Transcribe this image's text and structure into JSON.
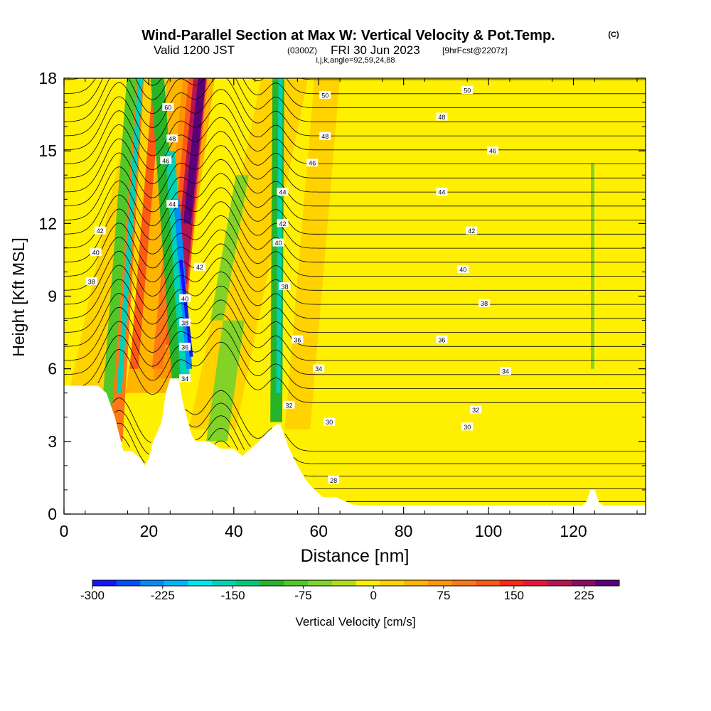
{
  "header": {
    "title": "Wind-Parallel Section at Max W: Vertical Velocity & Pot.Temp.",
    "title_mark": "(C)",
    "valid_prefix": "Valid 1200 JST",
    "valid_zulu": "(0300Z)",
    "valid_date": "FRI 30 Jun 2023",
    "forecast_tag": "[9hrFcst@2207z]",
    "section_params": "i,j,k,angle=92,59,24,88"
  },
  "chart_data": {
    "type": "heatmap",
    "xlabel": "Distance [nm]",
    "ylabel": "Height [Kft MSL]",
    "xlim": [
      0,
      137
    ],
    "ylim": [
      0,
      18
    ],
    "x_ticks": [
      0,
      20,
      40,
      60,
      80,
      100,
      120
    ],
    "y_ticks": [
      0,
      3,
      6,
      9,
      12,
      15,
      18
    ],
    "grid": false,
    "colorbar": {
      "label": "Vertical Velocity [cm/s]",
      "tick_labels": [
        "-300",
        "-225",
        "-150",
        "-75",
        "0",
        "75",
        "150",
        "225"
      ],
      "tick_values": [
        -300,
        -225,
        -150,
        -75,
        0,
        75,
        150,
        225
      ],
      "range": [
        -300,
        262.5
      ],
      "colors": [
        "#1414ff",
        "#0050ff",
        "#008cff",
        "#00b4ff",
        "#00e6f0",
        "#00d2b4",
        "#00c878",
        "#28b428",
        "#50c828",
        "#82d228",
        "#b4dc14",
        "#fff000",
        "#ffd200",
        "#ffb400",
        "#ff9600",
        "#ff7814",
        "#ff5a14",
        "#ff2814",
        "#e6143c",
        "#b41450",
        "#8c0a64",
        "#5a0078"
      ]
    },
    "terrain_kft": [
      [
        0,
        5.3
      ],
      [
        2,
        5.3
      ],
      [
        8,
        5.3
      ],
      [
        10,
        5.0
      ],
      [
        12,
        4.0
      ],
      [
        14,
        2.6
      ],
      [
        16,
        2.6
      ],
      [
        18,
        2.3
      ],
      [
        19,
        2.0
      ],
      [
        20,
        2.3
      ],
      [
        21,
        3.0
      ],
      [
        23,
        3.8
      ],
      [
        24,
        5.0
      ],
      [
        25,
        5.6
      ],
      [
        27,
        5.6
      ],
      [
        28,
        4.6
      ],
      [
        30,
        3.3
      ],
      [
        31,
        3.0
      ],
      [
        34,
        3.0
      ],
      [
        37,
        2.7
      ],
      [
        40,
        2.7
      ],
      [
        42,
        2.4
      ],
      [
        44,
        2.7
      ],
      [
        46,
        3.0
      ],
      [
        48,
        3.4
      ],
      [
        50,
        3.7
      ],
      [
        51,
        3.7
      ],
      [
        53,
        2.7
      ],
      [
        55,
        2.0
      ],
      [
        57,
        1.4
      ],
      [
        59,
        1.0
      ],
      [
        61,
        0.7
      ],
      [
        64,
        0.7
      ],
      [
        68,
        0.4
      ],
      [
        70,
        0.35
      ],
      [
        122,
        0.35
      ],
      [
        123,
        0.5
      ],
      [
        124,
        1.0
      ],
      [
        125,
        1.0
      ],
      [
        126,
        0.5
      ],
      [
        127,
        0.35
      ],
      [
        137,
        0.35
      ]
    ],
    "theta_contours": [
      {
        "label": "28",
        "x": 63.5,
        "y": 1.4
      },
      {
        "label": "30",
        "x": 62.5,
        "y": 3.8
      },
      {
        "label": "30",
        "x": 95,
        "y": 3.6
      },
      {
        "label": "32",
        "x": 53,
        "y": 4.5
      },
      {
        "label": "32",
        "x": 97,
        "y": 4.3
      },
      {
        "label": "34",
        "x": 28.5,
        "y": 5.6
      },
      {
        "label": "34",
        "x": 60,
        "y": 6.0
      },
      {
        "label": "34",
        "x": 104,
        "y": 5.9
      },
      {
        "label": "36",
        "x": 28.5,
        "y": 6.9
      },
      {
        "label": "36",
        "x": 55,
        "y": 7.2
      },
      {
        "label": "36",
        "x": 89,
        "y": 7.2
      },
      {
        "label": "38",
        "x": 6.5,
        "y": 9.6
      },
      {
        "label": "38",
        "x": 28.5,
        "y": 7.9
      },
      {
        "label": "38",
        "x": 52,
        "y": 9.4
      },
      {
        "label": "38",
        "x": 99,
        "y": 8.7
      },
      {
        "label": "40",
        "x": 7.5,
        "y": 10.8
      },
      {
        "label": "40",
        "x": 28.5,
        "y": 8.9
      },
      {
        "label": "40",
        "x": 50.5,
        "y": 11.2
      },
      {
        "label": "40",
        "x": 94,
        "y": 10.1
      },
      {
        "label": "42",
        "x": 8.5,
        "y": 11.7
      },
      {
        "label": "42",
        "x": 32,
        "y": 10.2
      },
      {
        "label": "42",
        "x": 51.5,
        "y": 12.0
      },
      {
        "label": "42",
        "x": 96,
        "y": 11.7
      },
      {
        "label": "44",
        "x": 25.5,
        "y": 12.8
      },
      {
        "label": "44",
        "x": 51.5,
        "y": 13.3
      },
      {
        "label": "44",
        "x": 89,
        "y": 13.3
      },
      {
        "label": "46",
        "x": 24,
        "y": 14.6
      },
      {
        "label": "46",
        "x": 58.5,
        "y": 14.5
      },
      {
        "label": "46",
        "x": 101,
        "y": 15.0
      },
      {
        "label": "48",
        "x": 25.5,
        "y": 15.5
      },
      {
        "label": "48",
        "x": 61.5,
        "y": 15.6
      },
      {
        "label": "48",
        "x": 89,
        "y": 16.4
      },
      {
        "label": "50",
        "x": 61.5,
        "y": 17.3
      },
      {
        "label": "50",
        "x": 95,
        "y": 17.5
      },
      {
        "label": "60",
        "x": 24.5,
        "y": 16.8
      }
    ]
  }
}
